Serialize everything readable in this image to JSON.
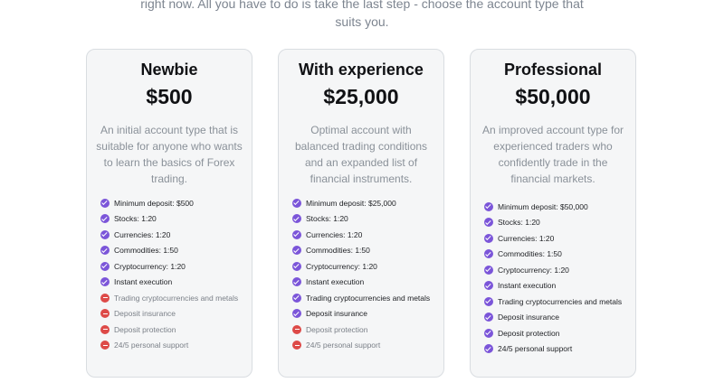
{
  "intro": {
    "line1": "right now. All you have to do is take the last step - choose the account type that",
    "line2": "suits you."
  },
  "cards": [
    {
      "title": "Newbie",
      "price": "$500",
      "description": "An initial account type that is suitable for anyone who wants to learn the basics of Forex trading.",
      "features": [
        {
          "label": "Minimum deposit: $500",
          "included": true
        },
        {
          "label": "Stocks: 1:20",
          "included": true
        },
        {
          "label": "Currencies: 1:20",
          "included": true
        },
        {
          "label": "Commodities: 1:50",
          "included": true
        },
        {
          "label": "Cryptocurrency: 1:20",
          "included": true
        },
        {
          "label": "Instant execution",
          "included": true
        },
        {
          "label": "Trading cryptocurrencies and metals",
          "included": false
        },
        {
          "label": "Deposit insurance",
          "included": false
        },
        {
          "label": "Deposit protection",
          "included": false
        },
        {
          "label": "24/5 personal support",
          "included": false
        }
      ]
    },
    {
      "title": "With experience",
      "price": "$25,000",
      "description": "Optimal account with balanced trading conditions and an expanded list of financial instruments.",
      "features": [
        {
          "label": "Minimum deposit: $25,000",
          "included": true
        },
        {
          "label": "Stocks: 1:20",
          "included": true
        },
        {
          "label": "Currencies: 1:20",
          "included": true
        },
        {
          "label": "Commodities: 1:50",
          "included": true
        },
        {
          "label": "Cryptocurrency: 1:20",
          "included": true
        },
        {
          "label": "Instant execution",
          "included": true
        },
        {
          "label": "Trading cryptocurrencies and metals",
          "included": true
        },
        {
          "label": "Deposit insurance",
          "included": true
        },
        {
          "label": "Deposit protection",
          "included": false
        },
        {
          "label": "24/5 personal support",
          "included": false
        }
      ]
    },
    {
      "title": "Professional",
      "price": "$50,000",
      "description": "An improved account type for experienced traders who confidently trade in the financial markets.",
      "features": [
        {
          "label": "Minimum deposit: $50,000",
          "included": true
        },
        {
          "label": "Stocks: 1:20",
          "included": true
        },
        {
          "label": "Currencies: 1:20",
          "included": true
        },
        {
          "label": "Commodities: 1:50",
          "included": true
        },
        {
          "label": "Cryptocurrency: 1:20",
          "included": true
        },
        {
          "label": "Instant execution",
          "included": true
        },
        {
          "label": "Trading cryptocurrencies and metals",
          "included": true
        },
        {
          "label": "Deposit insurance",
          "included": true
        },
        {
          "label": "Deposit protection",
          "included": true
        },
        {
          "label": "24/5 personal support",
          "included": true
        }
      ]
    }
  ],
  "colors": {
    "included_icon": "#7b55d9",
    "excluded_icon": "#dd4a48"
  }
}
